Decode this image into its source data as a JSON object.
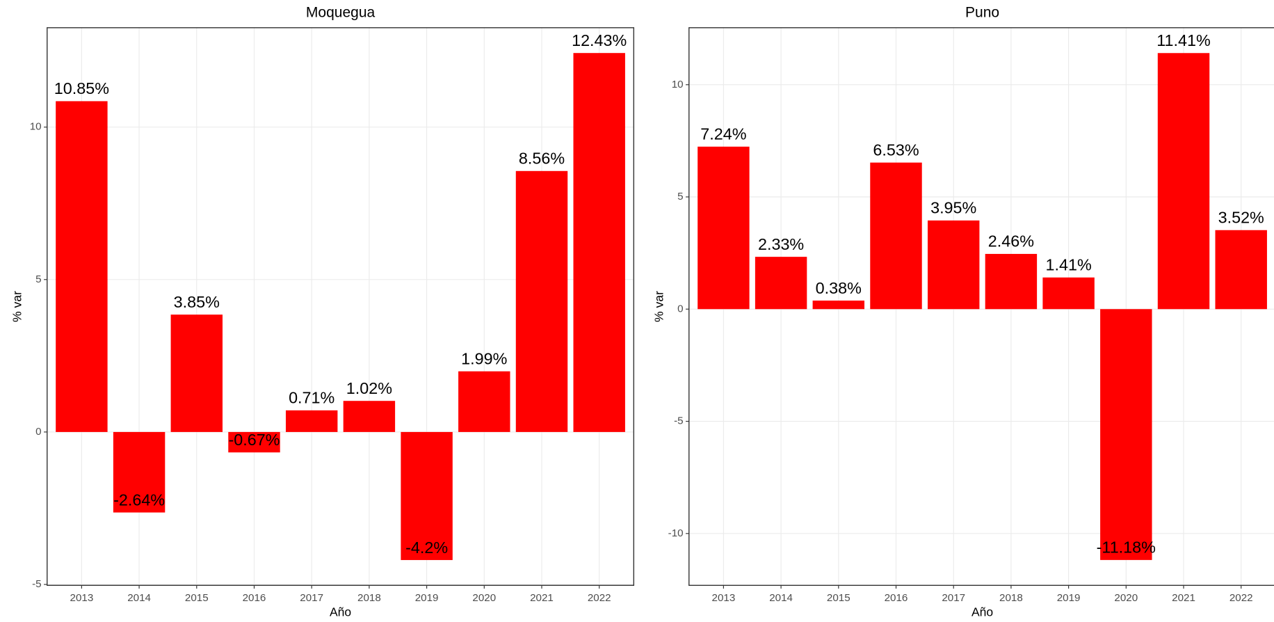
{
  "chart_data": [
    {
      "type": "bar",
      "title": "Moquegua",
      "x_label": "Año",
      "y_label": "% var",
      "categories": [
        "2013",
        "2014",
        "2015",
        "2016",
        "2017",
        "2018",
        "2019",
        "2020",
        "2021",
        "2022"
      ],
      "values": [
        10.85,
        -2.64,
        3.85,
        -0.67,
        0.71,
        1.02,
        -4.2,
        1.99,
        8.56,
        12.43
      ],
      "value_labels": [
        "10.85%",
        "-2.64%",
        "3.85%",
        "-0.67%",
        "0.71%",
        "1.02%",
        "-4.2%",
        "1.99%",
        "8.56%",
        "12.43%"
      ],
      "color": "#ff0000",
      "ylim": [
        -5.03,
        13.26
      ],
      "yticks": [
        -5,
        0,
        5,
        10
      ],
      "grid": true
    },
    {
      "type": "bar",
      "title": "Puno",
      "x_label": "Año",
      "y_label": "% var",
      "categories": [
        "2013",
        "2014",
        "2015",
        "2016",
        "2017",
        "2018",
        "2019",
        "2020",
        "2021",
        "2022"
      ],
      "values": [
        7.24,
        2.33,
        0.38,
        6.53,
        3.95,
        2.46,
        1.41,
        -11.18,
        11.41,
        3.52
      ],
      "value_labels": [
        "7.24%",
        "2.33%",
        "0.38%",
        "6.53%",
        "3.95%",
        "2.46%",
        "1.41%",
        "-11.18%",
        "11.41%",
        "3.52%"
      ],
      "color": "#ff0000",
      "ylim": [
        -12.31,
        12.54
      ],
      "yticks": [
        -10,
        -5,
        0,
        5,
        10
      ],
      "grid": true
    }
  ]
}
